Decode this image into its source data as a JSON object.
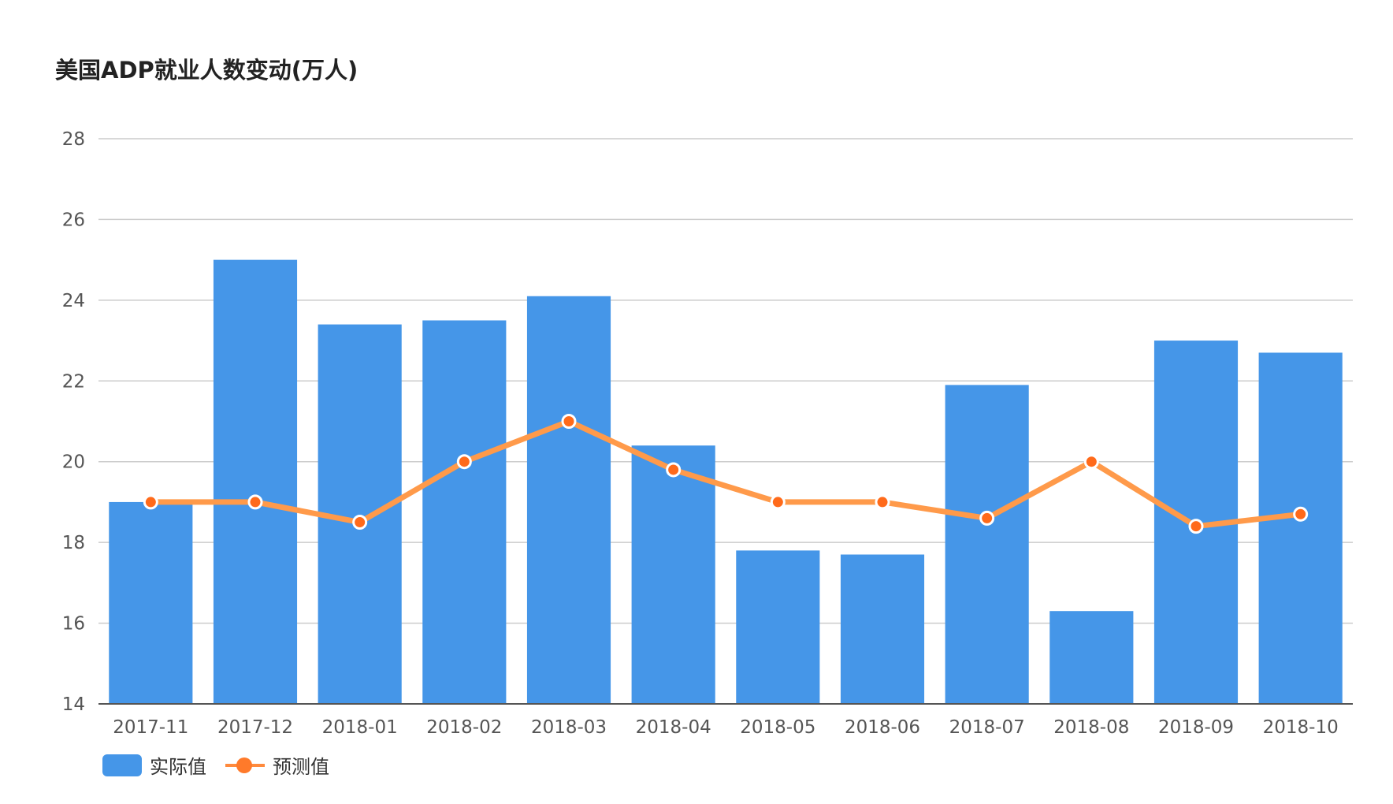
{
  "chart_data": {
    "type": "bar",
    "title": "美国ADP就业人数变动(万人)",
    "categories": [
      "2017-11",
      "2017-12",
      "2018-01",
      "2018-02",
      "2018-03",
      "2018-04",
      "2018-05",
      "2018-06",
      "2018-07",
      "2018-08",
      "2018-09",
      "2018-10"
    ],
    "series": [
      {
        "name": "实际值",
        "type": "bar",
        "color": "#4596e8",
        "values": [
          19.0,
          25.0,
          23.4,
          23.5,
          24.1,
          20.4,
          17.8,
          17.7,
          21.9,
          16.3,
          23.0,
          22.7
        ]
      },
      {
        "name": "预测值",
        "type": "line",
        "color": "#ff9a4a",
        "values": [
          19.0,
          19.0,
          18.5,
          20.0,
          21.0,
          19.8,
          19.0,
          19.0,
          18.6,
          20.0,
          18.4,
          18.7
        ]
      }
    ],
    "ylim": [
      14,
      28
    ],
    "yticks": [
      "14",
      "16",
      "18",
      "20",
      "22",
      "24",
      "26",
      "28"
    ],
    "grid": true,
    "legend": "bottom-left",
    "xlabel": "",
    "ylabel": ""
  }
}
